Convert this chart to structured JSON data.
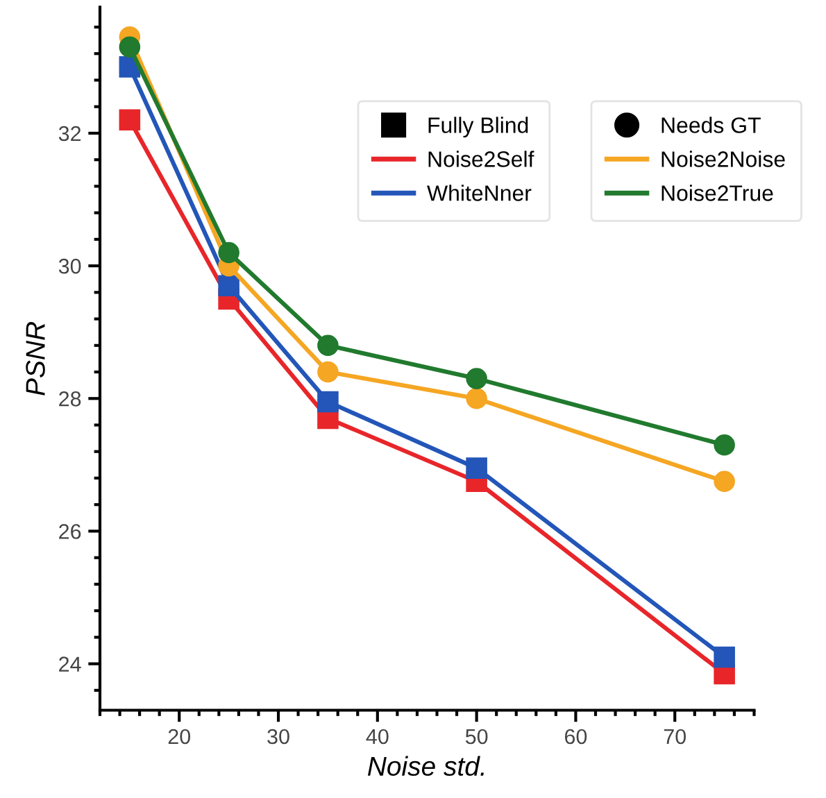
{
  "chart_data": {
    "type": "line",
    "xlabel": "Noise std.",
    "ylabel": "PSNR",
    "x": [
      15,
      25,
      35,
      50,
      75
    ],
    "xlim": [
      12,
      78
    ],
    "xticks": [
      20,
      30,
      40,
      50,
      60,
      70
    ],
    "ylim": [
      23.3,
      33.9
    ],
    "yticks": [
      24,
      26,
      28,
      30,
      32
    ],
    "legend": "top right",
    "legend_title": [
      "Fully Blind",
      "Needs GT"
    ],
    "grid": false,
    "line_style": "solid",
    "series": [
      {
        "name": "Noise2Self",
        "color": "#e8262a",
        "marker": "square",
        "values": [
          32.2,
          29.5,
          27.7,
          26.75,
          23.85
        ]
      },
      {
        "name": "WhiteNner",
        "color": "#2356b8",
        "marker": "square",
        "values": [
          33.0,
          29.7,
          27.95,
          26.95,
          24.1
        ]
      },
      {
        "name": "Noise2Noise",
        "color": "#f5a623",
        "marker": "circle",
        "values": [
          33.45,
          30.0,
          28.4,
          28.0,
          26.75
        ]
      },
      {
        "name": "Noise2True",
        "color": "#217a2e",
        "marker": "circle",
        "values": [
          33.3,
          30.2,
          28.8,
          28.3,
          27.3
        ]
      }
    ]
  }
}
